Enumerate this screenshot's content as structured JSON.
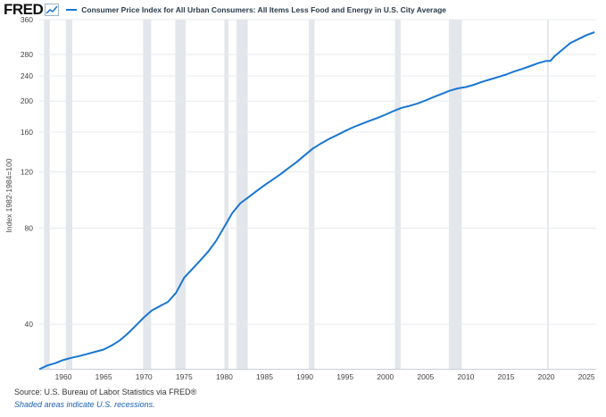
{
  "header": {
    "logo_text": "FRED",
    "logo_icon": "line-chart-icon",
    "title": "Consumer Price Index for All Urban Consumers: All Items Less Food and Energy in U.S. City Average",
    "series_color": "#1976d2"
  },
  "footer": {
    "source": "Source: U.S. Bureau of Labor Statistics via FRED®",
    "note": "Shaded areas indicate U.S. recessions."
  },
  "chart_data": {
    "type": "line",
    "title": "Consumer Price Index for All Urban Consumers: All Items Less Food and Energy in U.S. City Average",
    "xlabel": "",
    "ylabel": "Index 1982-1984=100",
    "y_scale": "log",
    "ylim": [
      29,
      360
    ],
    "xlim": [
      1957.0,
      2026.2
    ],
    "x_ticks": [
      1960,
      1965,
      1970,
      1975,
      1980,
      1985,
      1990,
      1995,
      2000,
      2005,
      2010,
      2015,
      2020,
      2025
    ],
    "y_ticks": [
      40,
      80,
      120,
      160,
      200,
      240,
      280,
      360
    ],
    "grid": "horizontal",
    "series_color": "#1976d2",
    "recession_color": "#e3e6ea",
    "recessions": [
      [
        1957.6,
        1958.3
      ],
      [
        1960.3,
        1961.1
      ],
      [
        1969.9,
        1970.9
      ],
      [
        1973.9,
        1975.2
      ],
      [
        1980.0,
        1980.5
      ],
      [
        1981.5,
        1982.9
      ],
      [
        1990.5,
        1991.2
      ],
      [
        2001.2,
        2001.9
      ],
      [
        2007.9,
        2009.5
      ],
      [
        2020.1,
        2020.3
      ]
    ],
    "series": [
      {
        "name": "Consumer Price Index for All Urban Consumers: All Items Less Food and Energy in U.S. City Average",
        "x": [
          1957,
          1958,
          1959,
          1960,
          1961,
          1962,
          1963,
          1964,
          1965,
          1966,
          1967,
          1968,
          1969,
          1970,
          1971,
          1972,
          1973,
          1974,
          1975,
          1976,
          1977,
          1978,
          1979,
          1980,
          1981,
          1982,
          1983,
          1984,
          1985,
          1986,
          1987,
          1988,
          1989,
          1990,
          1991,
          1992,
          1993,
          1994,
          1995,
          1996,
          1997,
          1998,
          1999,
          2000,
          2001,
          2002,
          2003,
          2004,
          2005,
          2006,
          2007,
          2008,
          2009,
          2010,
          2011,
          2012,
          2013,
          2014,
          2015,
          2016,
          2017,
          2018,
          2019,
          2020,
          2020.5,
          2021,
          2022,
          2023,
          2024,
          2025,
          2026
        ],
        "values": [
          28.9,
          29.7,
          30.2,
          30.9,
          31.4,
          31.8,
          32.3,
          32.8,
          33.3,
          34.3,
          35.6,
          37.4,
          39.6,
          42.0,
          44.2,
          45.6,
          47.0,
          50.2,
          55.9,
          59.5,
          63.3,
          67.6,
          73.2,
          80.8,
          89.3,
          95.8,
          100.0,
          104.6,
          109.1,
          113.5,
          118.2,
          123.5,
          129.0,
          135.5,
          142.1,
          147.3,
          152.2,
          156.5,
          161.2,
          165.6,
          169.5,
          173.4,
          177.0,
          181.3,
          186.1,
          190.5,
          193.2,
          196.6,
          200.9,
          205.9,
          210.7,
          215.6,
          219.2,
          221.3,
          225.0,
          229.8,
          233.8,
          237.9,
          242.2,
          247.6,
          252.2,
          257.6,
          263.1,
          267.3,
          267.2,
          276.0,
          290.0,
          304.0,
          313.0,
          322.0,
          329.0
        ]
      }
    ]
  }
}
